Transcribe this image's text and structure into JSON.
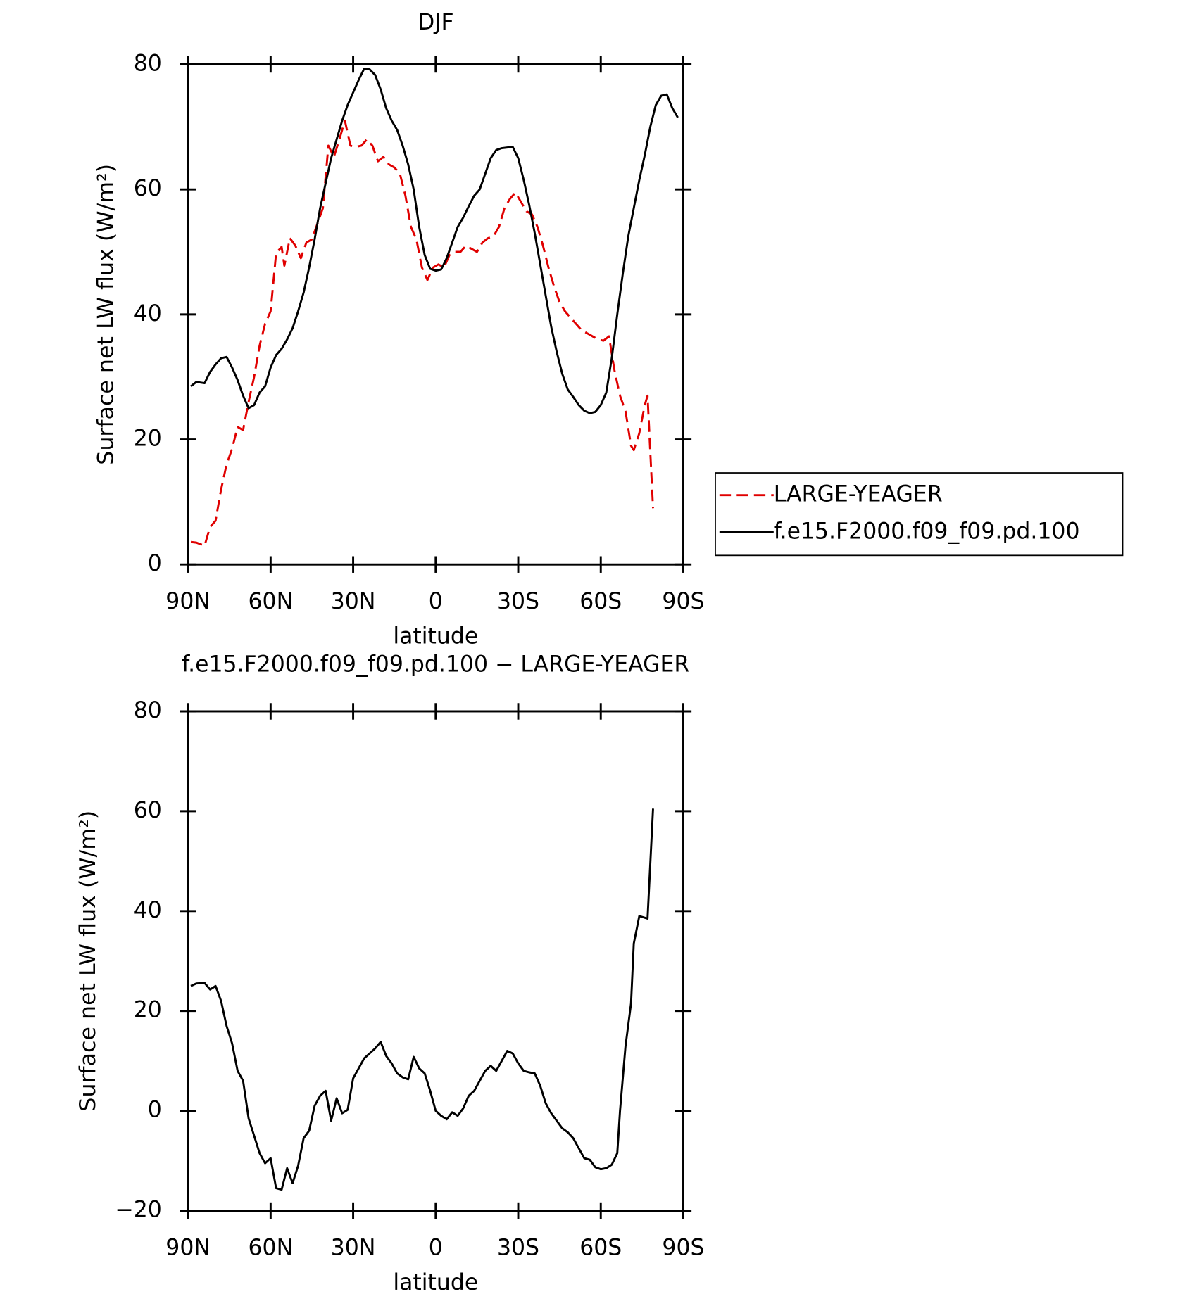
{
  "chart_data": [
    {
      "type": "line",
      "title": "DJF",
      "xlabel": "latitude",
      "ylabel": "Surface net LW flux (W/m²)",
      "xlim": [
        90,
        -90
      ],
      "xticks": [
        {
          "value": 90,
          "label": "90N"
        },
        {
          "value": 60,
          "label": "60N"
        },
        {
          "value": 30,
          "label": "30N"
        },
        0,
        {
          "value": -30,
          "label": "30S"
        },
        {
          "value": -60,
          "label": "60S"
        },
        {
          "value": -90,
          "label": "90S"
        }
      ],
      "ylim": [
        0,
        80
      ],
      "yticks": [
        0,
        20,
        40,
        60,
        80
      ],
      "legend": "right",
      "series": [
        {
          "name": "LARGE-YEAGER",
          "color": "#e00000",
          "line_style": "dashed",
          "x": [
            89,
            87,
            84,
            82,
            80,
            78,
            76,
            74,
            72,
            70,
            68,
            66,
            64,
            62,
            60,
            58,
            56,
            55,
            53,
            51,
            49,
            47,
            45,
            43,
            41,
            39,
            37,
            35,
            33,
            31,
            29,
            27,
            25,
            23,
            21,
            19,
            17,
            15,
            13,
            11,
            9,
            7,
            5,
            3,
            1,
            -1,
            -3,
            -5,
            -7,
            -9,
            -11,
            -13,
            -15,
            -17,
            -19,
            -21,
            -23,
            -25,
            -27,
            -29,
            -31,
            -33,
            -35,
            -37,
            -39,
            -41,
            -43,
            -45,
            -47,
            -49,
            -51,
            -53,
            -55,
            -57,
            -59,
            -61,
            -63,
            -65,
            -67,
            -69,
            -71,
            -72,
            -74,
            -76,
            -77,
            -79
          ],
          "values": [
            3.6,
            3.5,
            3.0,
            6,
            7,
            12,
            16,
            18.5,
            22,
            21.5,
            26,
            30,
            35,
            38.5,
            40.5,
            49.8,
            50.8,
            47.8,
            52.2,
            51,
            49,
            51.5,
            52,
            54.5,
            57,
            67,
            65.2,
            68,
            71,
            67,
            66.8,
            67,
            68,
            67,
            64.5,
            65.2,
            64,
            63.5,
            62.5,
            59,
            54,
            52,
            47.5,
            45.5,
            47.5,
            48,
            47.5,
            49.5,
            50,
            50,
            51,
            50.5,
            50,
            51.5,
            52.2,
            52.5,
            54,
            57,
            58.5,
            59.5,
            58,
            56.5,
            56,
            54,
            51,
            47.5,
            44.5,
            42,
            40.5,
            39.5,
            38.5,
            37.5,
            37,
            36.5,
            36,
            35.8,
            36.5,
            31,
            27,
            24.5,
            19,
            18.3,
            21,
            25.5,
            27,
            9
          ]
        },
        {
          "name": "f.e15.F2000.f09_f09.pd.100",
          "color": "#000000",
          "line_style": "solid",
          "x": [
            89,
            87,
            84,
            82,
            80,
            78,
            76,
            74,
            72,
            70,
            68,
            66,
            64,
            62,
            60,
            58,
            56,
            54,
            52,
            50,
            48,
            46,
            44,
            42,
            40,
            38,
            36,
            34,
            32,
            30,
            28,
            26,
            24,
            22,
            20,
            18,
            16,
            14,
            12,
            10,
            8,
            6,
            4,
            2,
            0,
            -2,
            -4,
            -6,
            -8,
            -10,
            -12,
            -14,
            -16,
            -18,
            -20,
            -22,
            -24,
            -26,
            -28,
            -30,
            -32,
            -34,
            -36,
            -38,
            -40,
            -42,
            -44,
            -46,
            -48,
            -50,
            -52,
            -54,
            -56,
            -58,
            -60,
            -62,
            -64,
            -66,
            -68,
            -70,
            -72,
            -74,
            -76,
            -78,
            -80,
            -82,
            -84,
            -86,
            -88
          ],
          "values": [
            28.5,
            29.2,
            29,
            30.8,
            32,
            33,
            33.2,
            31.5,
            29.5,
            27,
            25,
            25.5,
            27.5,
            28.5,
            31.5,
            33.5,
            34.5,
            36,
            37.8,
            40.5,
            43.5,
            47.5,
            52,
            57,
            61,
            65,
            68,
            71,
            73.5,
            75.5,
            77.5,
            79.3,
            79.2,
            78.3,
            76,
            73,
            71,
            69.5,
            67,
            64,
            60,
            54,
            49.5,
            47.3,
            47.0,
            47.2,
            49,
            51.5,
            54,
            55.5,
            57.3,
            59,
            60,
            62.5,
            65,
            66.3,
            66.6,
            66.7,
            66.8,
            65,
            61.5,
            57.5,
            53,
            48,
            43,
            38,
            34,
            30.5,
            28,
            26.8,
            25.5,
            24.6,
            24.2,
            24.4,
            25.5,
            27.5,
            33,
            40,
            46.5,
            52.5,
            57,
            61.5,
            65.5,
            70,
            73.5,
            75,
            75.2,
            73,
            71.5
          ]
        }
      ]
    },
    {
      "type": "line",
      "title": "f.e15.F2000.f09_f09.pd.100 − LARGE-YEAGER",
      "xlabel": "latitude",
      "ylabel": "Surface net LW flux (W/m²)",
      "xlim": [
        90,
        -90
      ],
      "xticks": [
        {
          "value": 90,
          "label": "90N"
        },
        {
          "value": 60,
          "label": "60N"
        },
        {
          "value": 30,
          "label": "30N"
        },
        0,
        {
          "value": -30,
          "label": "30S"
        },
        {
          "value": -60,
          "label": "60S"
        },
        {
          "value": -90,
          "label": "90S"
        }
      ],
      "ylim": [
        -20,
        80
      ],
      "yticks": [
        {
          "value": -20,
          "label": "−20"
        },
        0,
        20,
        40,
        60,
        80
      ],
      "series": [
        {
          "color": "#000000",
          "line_style": "solid",
          "x": [
            89,
            87,
            84,
            82,
            80,
            78,
            76,
            74,
            72,
            70,
            68,
            66,
            64,
            62,
            60,
            58,
            56,
            54,
            52,
            50,
            48,
            46,
            44,
            42,
            40,
            38,
            36,
            34,
            32,
            30,
            28,
            26,
            24,
            22,
            20,
            18,
            16,
            14,
            12,
            10,
            8,
            6,
            4,
            2,
            0,
            -2,
            -4,
            -6,
            -8,
            -10,
            -12,
            -14,
            -16,
            -18,
            -20,
            -22,
            -24,
            -26,
            -28,
            -30,
            -32,
            -34,
            -36,
            -38,
            -40,
            -42,
            -44,
            -46,
            -48,
            -50,
            -52,
            -54,
            -56,
            -58,
            -60,
            -62,
            -64,
            -66,
            -67,
            -69,
            -71,
            -72,
            -74,
            -77,
            -79
          ],
          "values": [
            25,
            25.5,
            25.6,
            24.3,
            25,
            22,
            17,
            13.5,
            8,
            6,
            -1.5,
            -5,
            -8.5,
            -10.5,
            -9.5,
            -15.5,
            -15.8,
            -11.5,
            -14.5,
            -11,
            -5.5,
            -4,
            1,
            3,
            4,
            -2,
            2.5,
            -0.5,
            0.2,
            6.5,
            8.5,
            10.5,
            11.5,
            12.5,
            13.8,
            11,
            9.5,
            7.5,
            6.7,
            6.3,
            10.8,
            8.5,
            7.5,
            4,
            0,
            -1,
            -1.7,
            -0.3,
            -1,
            0.5,
            3,
            4,
            6,
            8,
            9,
            8,
            10,
            12,
            11.5,
            9.5,
            8,
            7.7,
            7.5,
            5,
            1.5,
            -0.5,
            -2,
            -3.5,
            -4.3,
            -5.5,
            -7.5,
            -9.5,
            -9.8,
            -11.3,
            -11.7,
            -11.5,
            -10.8,
            -8.5,
            0,
            13,
            21.5,
            33.5,
            39,
            38.5,
            60.5
          ]
        }
      ]
    }
  ]
}
